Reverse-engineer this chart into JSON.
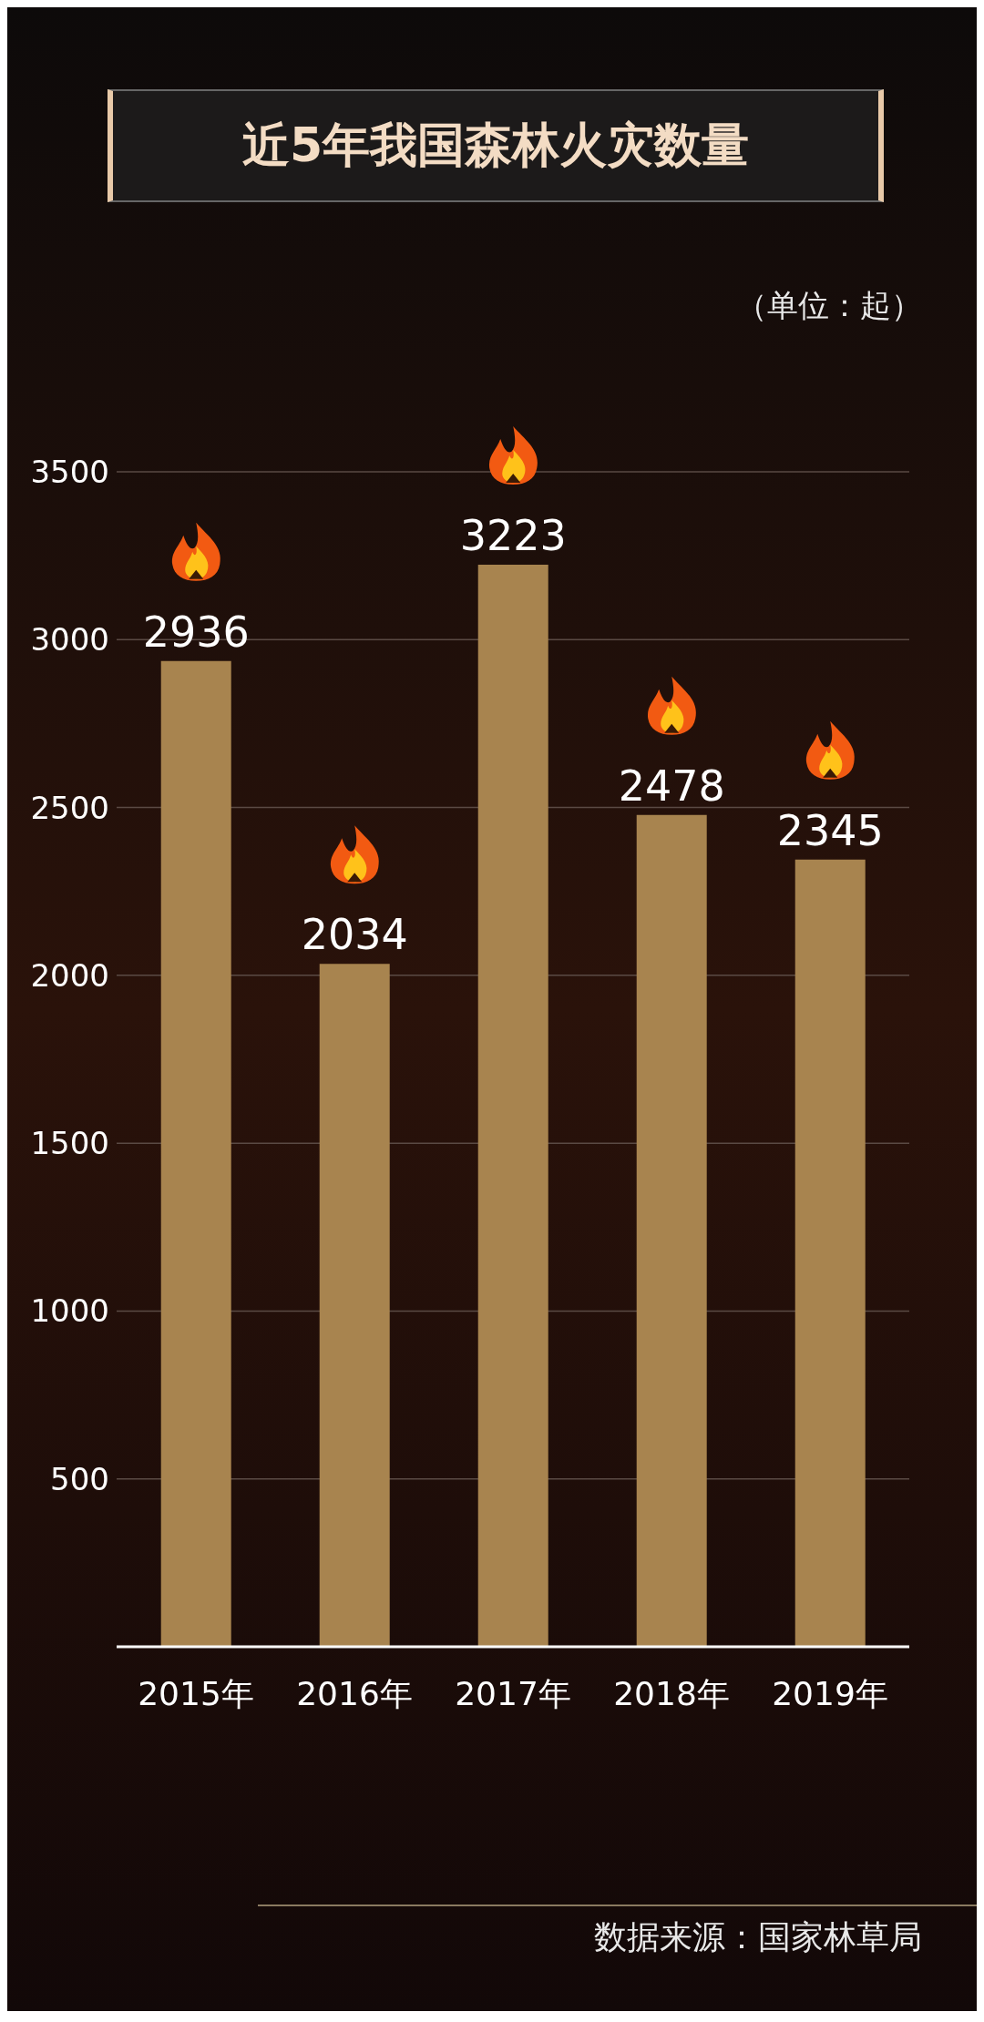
{
  "chart_data": {
    "type": "bar",
    "title": "近5年我国森林火灾数量",
    "ylabel": "（单位：起）",
    "categories": [
      "2015年",
      "2016年",
      "2017年",
      "2018年",
      "2019年"
    ],
    "values": [
      2936,
      2034,
      3223,
      2478,
      2345
    ],
    "color": "#a8844f",
    "ylim": [
      0,
      3500
    ],
    "yticks": [
      500,
      1000,
      1500,
      2000,
      2500,
      3000,
      3500
    ],
    "grid": "y",
    "data_labels": true,
    "annotations": [
      "数据来源：国家林草局"
    ]
  }
}
